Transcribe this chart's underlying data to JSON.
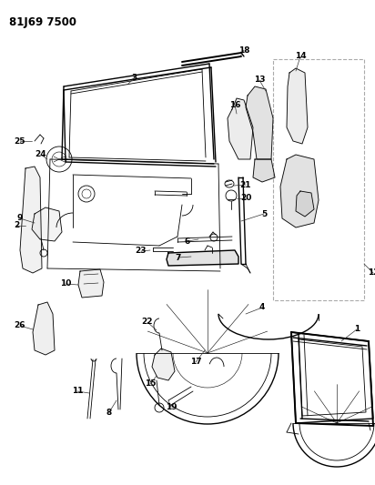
{
  "title": "81J69 7500",
  "bg_color": "#ffffff",
  "line_color": "#000000",
  "fig_width": 4.12,
  "fig_height": 5.33,
  "dpi": 100
}
